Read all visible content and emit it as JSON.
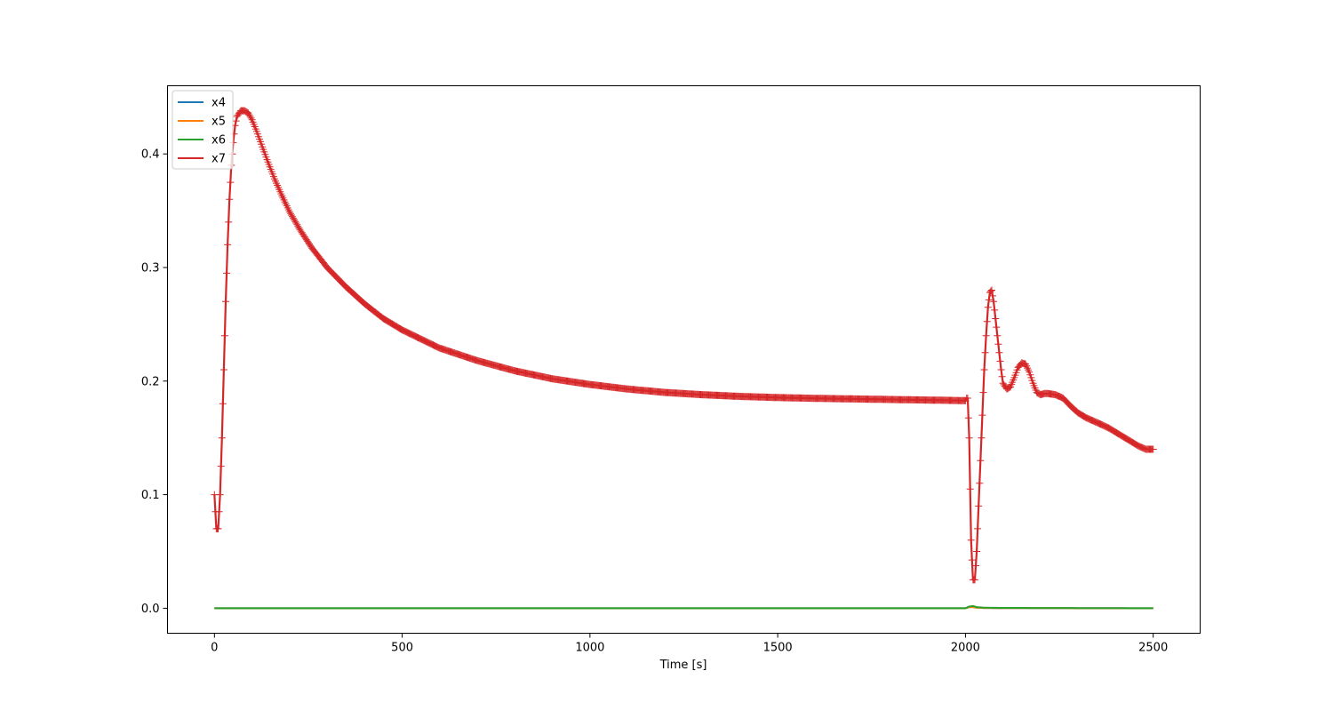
{
  "chart_data": {
    "type": "line",
    "title": "",
    "xlabel": "Time [s]",
    "ylabel": "",
    "xlim": [
      -125,
      2625
    ],
    "ylim": [
      -0.022,
      0.46
    ],
    "x_ticks": [
      0,
      500,
      1000,
      1500,
      2000,
      2500
    ],
    "x_tick_labels": [
      "0",
      "500",
      "1000",
      "1500",
      "2000",
      "2500"
    ],
    "y_ticks": [
      0.0,
      0.1,
      0.2,
      0.3,
      0.4
    ],
    "y_tick_labels": [
      "0.0",
      "0.1",
      "0.2",
      "0.3",
      "0.4"
    ],
    "grid": false,
    "legend_position": "upper-left",
    "series": [
      {
        "name": "x4",
        "color": "#1f77b4",
        "marker": "none",
        "x": [
          0,
          500,
          1000,
          1500,
          2000,
          2010,
          2020,
          2030,
          2050,
          2100,
          2500
        ],
        "y": [
          0.0,
          0.0,
          0.0,
          0.0,
          0.0,
          0.001,
          0.001,
          0.0005,
          0.0002,
          0.0001,
          0.0
        ]
      },
      {
        "name": "x5",
        "color": "#ff7f0e",
        "marker": "none",
        "x": [
          0,
          500,
          1000,
          1500,
          2000,
          2010,
          2020,
          2030,
          2050,
          2100,
          2500
        ],
        "y": [
          0.0,
          0.0,
          0.0,
          0.0,
          0.0,
          0.001,
          0.001,
          0.0005,
          0.0002,
          0.0001,
          0.0
        ]
      },
      {
        "name": "x6",
        "color": "#2ca02c",
        "marker": "none",
        "x": [
          0,
          500,
          1000,
          1500,
          2000,
          2010,
          2020,
          2030,
          2050,
          2100,
          2500
        ],
        "y": [
          0.0,
          0.0,
          0.0,
          0.0,
          0.0,
          0.0015,
          0.002,
          0.001,
          0.0005,
          0.0003,
          0.0
        ]
      },
      {
        "name": "x7",
        "color": "#d62728",
        "marker": "+",
        "x": [
          0,
          5,
          10,
          15,
          20,
          25,
          30,
          35,
          40,
          45,
          50,
          55,
          60,
          70,
          80,
          90,
          100,
          110,
          120,
          140,
          160,
          180,
          200,
          230,
          260,
          300,
          350,
          400,
          450,
          500,
          600,
          700,
          800,
          900,
          1000,
          1100,
          1200,
          1300,
          1400,
          1500,
          1600,
          1700,
          1800,
          1900,
          2000,
          2003,
          2006,
          2010,
          2015,
          2020,
          2025,
          2030,
          2035,
          2040,
          2045,
          2050,
          2055,
          2060,
          2065,
          2070,
          2075,
          2080,
          2085,
          2090,
          2095,
          2100,
          2110,
          2120,
          2130,
          2140,
          2150,
          2160,
          2170,
          2180,
          2190,
          2200,
          2210,
          2220,
          2240,
          2260,
          2280,
          2300,
          2320,
          2340,
          2360,
          2380,
          2400,
          2420,
          2440,
          2460,
          2480,
          2500
        ],
        "y": [
          0.1,
          0.07,
          0.07,
          0.1,
          0.15,
          0.21,
          0.27,
          0.32,
          0.36,
          0.39,
          0.41,
          0.425,
          0.433,
          0.438,
          0.438,
          0.436,
          0.43,
          0.422,
          0.413,
          0.395,
          0.378,
          0.363,
          0.349,
          0.332,
          0.317,
          0.3,
          0.283,
          0.268,
          0.255,
          0.245,
          0.229,
          0.218,
          0.209,
          0.202,
          0.197,
          0.193,
          0.19,
          0.188,
          0.1865,
          0.1855,
          0.1848,
          0.1843,
          0.1838,
          0.1833,
          0.1828,
          0.185,
          0.185,
          0.15,
          0.06,
          0.025,
          0.025,
          0.05,
          0.09,
          0.13,
          0.17,
          0.21,
          0.24,
          0.265,
          0.278,
          0.28,
          0.27,
          0.255,
          0.24,
          0.225,
          0.21,
          0.198,
          0.193,
          0.195,
          0.203,
          0.212,
          0.216,
          0.215,
          0.208,
          0.198,
          0.19,
          0.188,
          0.189,
          0.189,
          0.188,
          0.185,
          0.178,
          0.172,
          0.168,
          0.165,
          0.162,
          0.159,
          0.155,
          0.151,
          0.147,
          0.143,
          0.14,
          0.14
        ]
      }
    ]
  }
}
